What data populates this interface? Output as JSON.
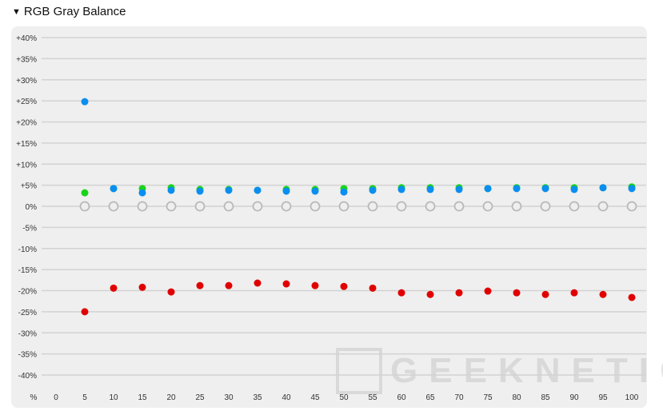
{
  "section": {
    "title": "RGB Gray Balance",
    "toggle_icon": "triangle-down-icon"
  },
  "watermark": "GEEKNETIC",
  "chart_data": {
    "type": "scatter",
    "title": "",
    "xlabel": "%",
    "ylabel": "",
    "x": [
      5,
      10,
      15,
      20,
      25,
      30,
      35,
      40,
      45,
      50,
      55,
      60,
      65,
      70,
      75,
      80,
      85,
      90,
      95,
      100
    ],
    "x_ticks": [
      "0",
      "5",
      "10",
      "15",
      "20",
      "25",
      "30",
      "35",
      "40",
      "45",
      "50",
      "55",
      "60",
      "65",
      "70",
      "75",
      "80",
      "85",
      "90",
      "95",
      "100"
    ],
    "y_ticks": [
      "+40%",
      "+35%",
      "+30%",
      "+25%",
      "+20%",
      "+15%",
      "+10%",
      "+5%",
      "0%",
      "-5%",
      "-10%",
      "-15%",
      "-20%",
      "-25%",
      "-30%",
      "-35%",
      "-40%"
    ],
    "ylim": [
      -40,
      40
    ],
    "grid": true,
    "series": [
      {
        "color": "#b9b9b9",
        "style": "hollow",
        "values": [
          0,
          0,
          0,
          0,
          0,
          0,
          0,
          0,
          0,
          0,
          0,
          0,
          0,
          0,
          0,
          0,
          0,
          0,
          0,
          0
        ]
      },
      {
        "color": "#e00000",
        "values": [
          -25.0,
          -19.4,
          -19.2,
          -20.3,
          -18.8,
          -18.8,
          -18.2,
          -18.4,
          -18.8,
          -19.0,
          -19.4,
          -20.5,
          -20.9,
          -20.5,
          -20.1,
          -20.5,
          -20.9,
          -20.5,
          -20.9,
          -21.6
        ]
      },
      {
        "color": "#19d419",
        "values": [
          3.2,
          4.2,
          4.2,
          4.4,
          4.0,
          4.0,
          3.8,
          4.0,
          4.0,
          4.2,
          4.2,
          4.4,
          4.4,
          4.4,
          4.2,
          4.4,
          4.4,
          4.4,
          4.4,
          4.6
        ]
      },
      {
        "color": "#0a8ef0",
        "values": [
          24.8,
          4.2,
          3.2,
          3.8,
          3.6,
          3.8,
          3.8,
          3.6,
          3.6,
          3.4,
          3.8,
          4.0,
          4.0,
          4.0,
          4.2,
          4.2,
          4.2,
          4.0,
          4.4,
          4.2
        ]
      }
    ]
  }
}
